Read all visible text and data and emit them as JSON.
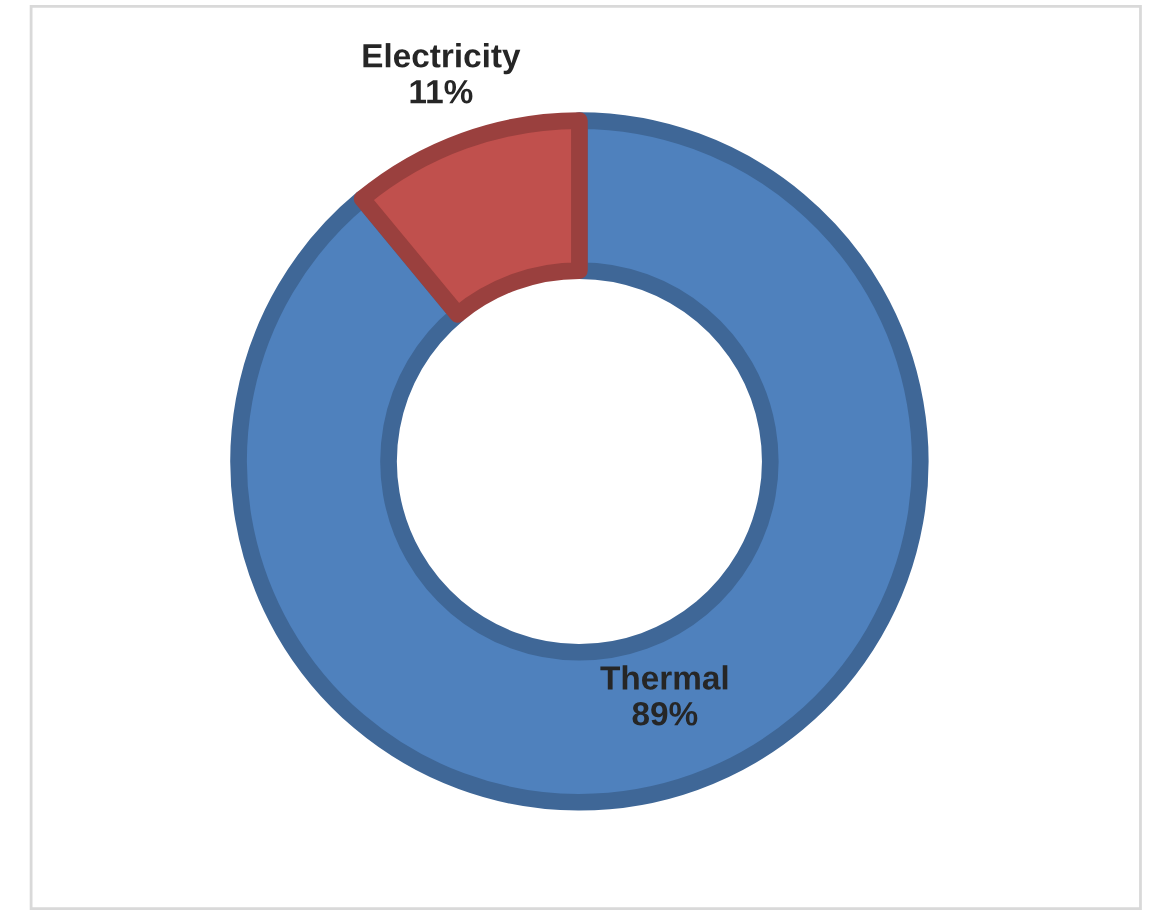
{
  "chart_data": {
    "type": "donut",
    "categories": [
      "Thermal",
      "Electricity"
    ],
    "values": [
      89,
      11
    ],
    "colors": [
      "#4f81bd",
      "#c0504d"
    ],
    "value_labels": [
      "89%",
      "11%"
    ]
  }
}
